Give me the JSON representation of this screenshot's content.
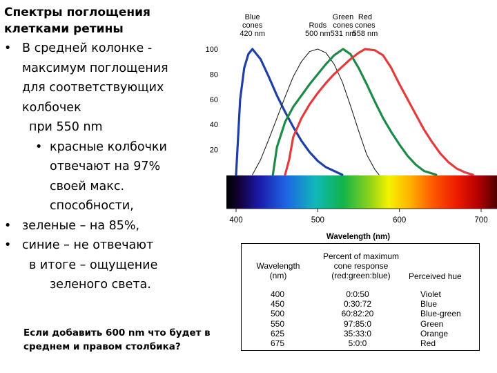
{
  "text": {
    "title_line1": "Спектры поглощения",
    "title_line2": "клетками ретины",
    "bullet": "•",
    "b1_line1": "В средней колонке  -",
    "b1_line2": "максимум поглощения",
    "b1_line3": "для соответствующих",
    "b1_line4": "колбочек",
    "b1_line5": "при  550 nm",
    "b2_line1": "красные колбочки",
    "b2_line2": "отвечают на 97%",
    "b2_line3": "своей макс.",
    "b2_line4": "способности,",
    "b3": "зеленые – на 85%,",
    "b4": "синие – не отвечают",
    "b5_line1": "в итоге – ощущение",
    "b5_line2": "зеленого света.",
    "question_line1": "Если добавить 600 nm что будет в",
    "question_line2": "среднем и правом столбика?"
  },
  "chart_data": {
    "type": "line",
    "xlabel": "Wavelength (nm)",
    "ylabel": "",
    "xlim": [
      400,
      700
    ],
    "ylim": [
      0,
      100
    ],
    "x_ticks": [
      400,
      500,
      600,
      700
    ],
    "y_ticks": [
      20,
      40,
      60,
      80,
      100
    ],
    "grid": false,
    "spectrum_bar": true,
    "series": [
      {
        "name": "Blue cones",
        "label_lines": [
          "Blue",
          "cones",
          "420 nm"
        ],
        "peak": 420,
        "color": "#1f3fa6",
        "dashed": false,
        "x": [
          400,
          405,
          410,
          415,
          420,
          430,
          440,
          450,
          460,
          470,
          480,
          490,
          500,
          510,
          520,
          530
        ],
        "y": [
          0,
          60,
          85,
          96,
          100,
          92,
          78,
          63,
          50,
          38,
          27,
          18,
          11,
          6,
          3,
          0
        ]
      },
      {
        "name": "Rods",
        "label_lines": [
          "Rods",
          "500 nm"
        ],
        "peak": 500,
        "color": "#222222",
        "dashed": false,
        "x": [
          420,
          430,
          440,
          450,
          460,
          470,
          480,
          490,
          500,
          510,
          520,
          530,
          540,
          550,
          560,
          570,
          575
        ],
        "y": [
          0,
          12,
          28,
          45,
          62,
          78,
          90,
          98,
          100,
          97,
          88,
          74,
          55,
          35,
          16,
          4,
          0
        ]
      },
      {
        "name": "Green cones",
        "label_lines": [
          "Green",
          "cones",
          "531 nm"
        ],
        "peak": 531,
        "color": "#1e8a4a",
        "dashed": false,
        "x": [
          445,
          450,
          460,
          470,
          480,
          490,
          500,
          510,
          520,
          531,
          540,
          550,
          560,
          570,
          580,
          590,
          600,
          610,
          620,
          630,
          640,
          645
        ],
        "y": [
          0,
          22,
          42,
          54,
          63,
          72,
          80,
          88,
          95,
          100,
          96,
          85,
          72,
          58,
          45,
          34,
          24,
          15,
          8,
          3,
          1,
          0
        ]
      },
      {
        "name": "Red cones",
        "label_lines": [
          "Red",
          "cones",
          "558 nm"
        ],
        "peak": 558,
        "color": "#e23b3b",
        "dashed": false,
        "x": [
          460,
          465,
          470,
          480,
          490,
          500,
          510,
          520,
          530,
          540,
          550,
          558,
          570,
          580,
          590,
          600,
          610,
          620,
          630,
          640,
          650,
          660,
          670,
          680,
          690
        ],
        "y": [
          0,
          12,
          30,
          45,
          56,
          65,
          73,
          80,
          86,
          92,
          97,
          100,
          99,
          95,
          85,
          72,
          60,
          48,
          36,
          26,
          17,
          10,
          5,
          2,
          0
        ]
      }
    ]
  },
  "table": {
    "headers": {
      "wavelength": [
        "Wavelength",
        "(nm)"
      ],
      "percent": [
        "Percent of maximum",
        "cone response",
        "(red:green:blue)"
      ],
      "hue": [
        "Perceived hue"
      ]
    },
    "rows": [
      {
        "wavelength": "400",
        "response": "0:0:50",
        "hue": "Violet"
      },
      {
        "wavelength": "450",
        "response": "0:30:72",
        "hue": "Blue"
      },
      {
        "wavelength": "500",
        "response": "60:82:20",
        "hue": "Blue-green"
      },
      {
        "wavelength": "550",
        "response": "97:85:0",
        "hue": "Green"
      },
      {
        "wavelength": "625",
        "response": "35:33:0",
        "hue": "Orange"
      },
      {
        "wavelength": "675",
        "response": "5:0:0",
        "hue": "Red"
      }
    ]
  }
}
